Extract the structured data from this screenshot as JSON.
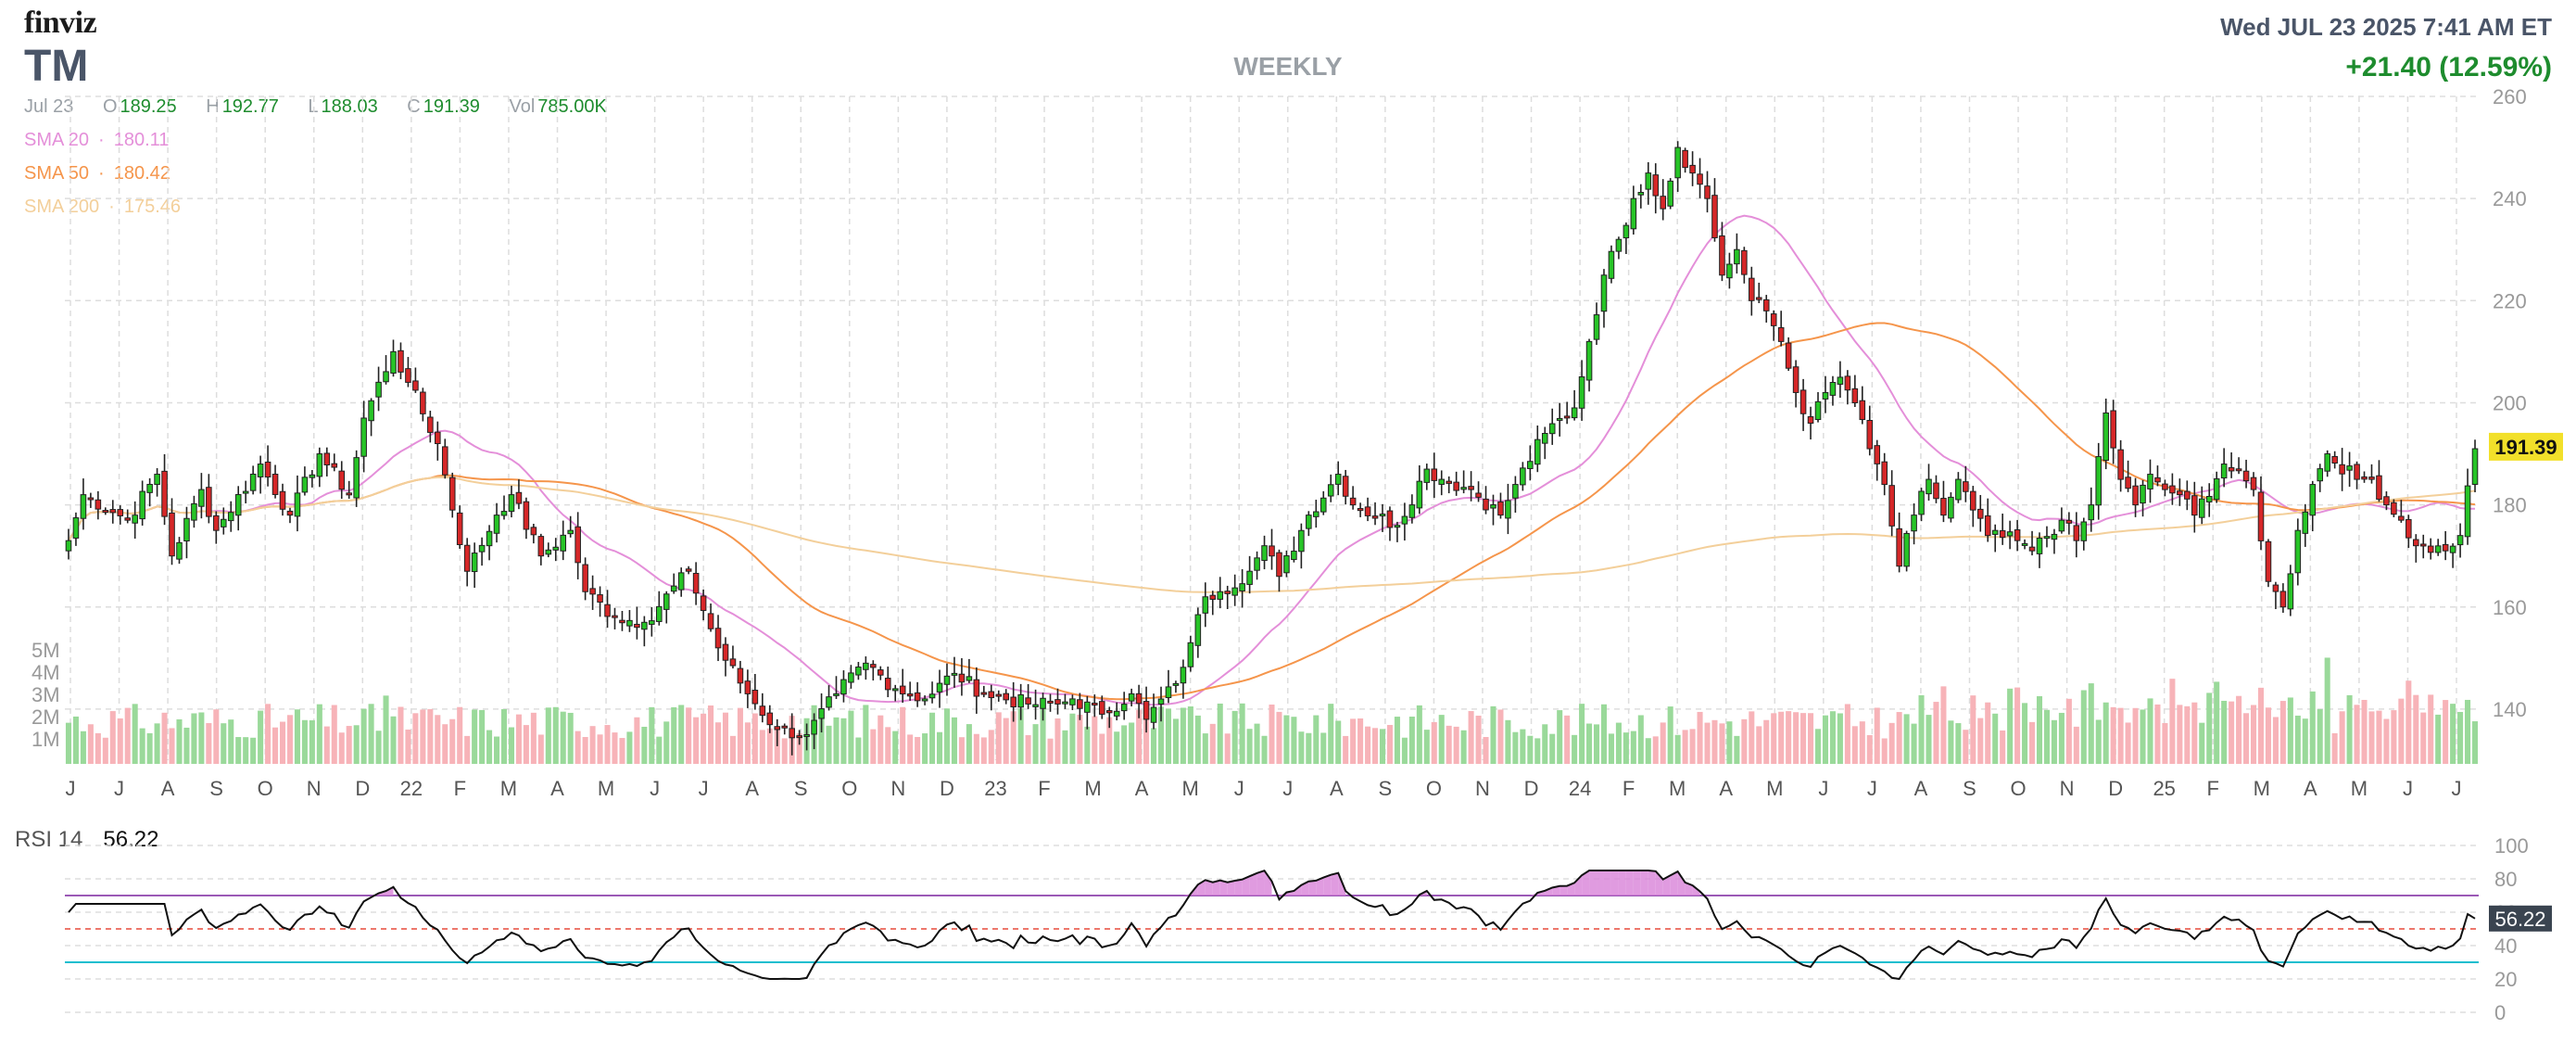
{
  "logo": "finviz",
  "ticker": "TM",
  "period": "WEEKLY",
  "datetime": "Wed JUL 23 2025 7:41 AM ET",
  "change": "+21.40 (12.59%)",
  "ohlc": {
    "date": "Jul 23",
    "open_label": "O",
    "open": "189.25",
    "high_label": "H",
    "high": "192.77",
    "low_label": "L",
    "low": "188.03",
    "close_label": "C",
    "close": "191.39",
    "vol_label": "Vol",
    "vol": "785.00K"
  },
  "indicators": [
    {
      "label": "SMA 20",
      "value": "180.11",
      "color": "#e48fd9"
    },
    {
      "label": "SMA 50",
      "value": "180.42",
      "color": "#f5954b"
    },
    {
      "label": "SMA 200",
      "value": "175.46",
      "color": "#f3cf9a"
    }
  ],
  "rsi": {
    "label": "RSI 14",
    "value": "56.22"
  },
  "colors": {
    "up": "#27c427",
    "down": "#d62728",
    "vol_up": "#9ad99a",
    "vol_down": "#f7b3b8",
    "grid": "#dddddd",
    "axis_text": "#999999",
    "current_price_bg": "#f2e02a",
    "rsi_fill": "#d882d8",
    "rsi_upper": "#9b59b6",
    "rsi_lower": "#17becf",
    "rsi_mid": "#e74c3c"
  },
  "chart_data": {
    "type": "candlestick",
    "price_axis": {
      "range": [
        130,
        260
      ],
      "ticks": [
        "140",
        "160",
        "180",
        "200",
        "220",
        "240",
        "260"
      ]
    },
    "current_price_label": "191.39",
    "volume_axis": {
      "ticks": [
        "1M",
        "2M",
        "3M",
        "4M",
        "5M"
      ]
    },
    "x_ticks": [
      "J",
      "J",
      "A",
      "S",
      "O",
      "N",
      "D",
      "22",
      "F",
      "M",
      "A",
      "M",
      "J",
      "J",
      "A",
      "S",
      "O",
      "N",
      "D",
      "23",
      "F",
      "M",
      "A",
      "M",
      "J",
      "J",
      "A",
      "S",
      "O",
      "N",
      "D",
      "24",
      "F",
      "M",
      "A",
      "M",
      "J",
      "J",
      "A",
      "S",
      "O",
      "N",
      "D",
      "25",
      "F",
      "M",
      "A",
      "M",
      "J",
      "J"
    ],
    "anchors": [
      [
        0,
        173
      ],
      [
        2,
        182
      ],
      [
        8,
        177
      ],
      [
        12,
        186
      ],
      [
        14,
        170
      ],
      [
        18,
        183
      ],
      [
        20,
        175
      ],
      [
        26,
        188
      ],
      [
        30,
        178
      ],
      [
        34,
        190
      ],
      [
        38,
        182
      ],
      [
        40,
        197
      ],
      [
        44,
        210
      ],
      [
        46,
        204
      ],
      [
        50,
        192
      ],
      [
        54,
        167
      ],
      [
        58,
        178
      ],
      [
        60,
        182
      ],
      [
        64,
        170
      ],
      [
        68,
        175
      ],
      [
        70,
        163
      ],
      [
        74,
        158
      ],
      [
        78,
        157
      ],
      [
        84,
        167
      ],
      [
        88,
        152
      ],
      [
        92,
        143
      ],
      [
        96,
        136
      ],
      [
        100,
        135
      ],
      [
        104,
        143
      ],
      [
        108,
        149
      ],
      [
        112,
        144
      ],
      [
        116,
        142
      ],
      [
        120,
        147
      ],
      [
        124,
        143
      ],
      [
        130,
        141
      ],
      [
        134,
        141
      ],
      [
        136,
        142
      ],
      [
        140,
        139
      ],
      [
        144,
        143
      ],
      [
        146,
        138
      ],
      [
        150,
        145
      ],
      [
        152,
        153
      ],
      [
        154,
        162
      ],
      [
        156,
        163
      ],
      [
        160,
        167
      ],
      [
        162,
        172
      ],
      [
        164,
        166
      ],
      [
        168,
        178
      ],
      [
        172,
        186
      ],
      [
        174,
        180
      ],
      [
        180,
        176
      ],
      [
        184,
        187
      ],
      [
        186,
        185
      ],
      [
        190,
        183
      ],
      [
        194,
        178
      ],
      [
        196,
        184
      ],
      [
        200,
        194
      ],
      [
        204,
        199
      ],
      [
        206,
        212
      ],
      [
        208,
        225
      ],
      [
        210,
        232
      ],
      [
        212,
        240
      ],
      [
        214,
        245
      ],
      [
        216,
        238
      ],
      [
        218,
        250
      ],
      [
        220,
        245
      ],
      [
        222,
        240
      ],
      [
        224,
        225
      ],
      [
        226,
        230
      ],
      [
        228,
        220
      ],
      [
        230,
        218
      ],
      [
        232,
        212
      ],
      [
        234,
        202
      ],
      [
        236,
        196
      ],
      [
        238,
        202
      ],
      [
        240,
        205
      ],
      [
        242,
        200
      ],
      [
        244,
        191
      ],
      [
        246,
        184
      ],
      [
        248,
        168
      ],
      [
        250,
        178
      ],
      [
        252,
        185
      ],
      [
        254,
        178
      ],
      [
        256,
        185
      ],
      [
        258,
        179
      ],
      [
        260,
        174
      ],
      [
        264,
        173
      ],
      [
        266,
        171
      ],
      [
        270,
        177
      ],
      [
        272,
        173
      ],
      [
        274,
        180
      ],
      [
        276,
        198
      ],
      [
        278,
        185
      ],
      [
        280,
        180
      ],
      [
        282,
        186
      ],
      [
        284,
        183
      ],
      [
        286,
        182
      ],
      [
        288,
        178
      ],
      [
        292,
        188
      ],
      [
        296,
        183
      ],
      [
        298,
        165
      ],
      [
        300,
        160
      ],
      [
        302,
        175
      ],
      [
        304,
        184
      ],
      [
        306,
        190
      ],
      [
        310,
        185
      ],
      [
        312,
        185
      ],
      [
        314,
        180
      ],
      [
        316,
        177
      ],
      [
        318,
        172
      ],
      [
        322,
        171
      ],
      [
        324,
        174
      ],
      [
        326,
        191
      ]
    ],
    "sma_levels": [
      {
        "name": "SMA 20",
        "value": 180.11
      },
      {
        "name": "SMA 50",
        "value": 180.42
      },
      {
        "name": "SMA 200",
        "value": 175.46
      }
    ],
    "rsi_axis": {
      "range": [
        0,
        100
      ],
      "ticks": [
        "0",
        "20",
        "40",
        "60",
        "80",
        "100"
      ],
      "upper": 70,
      "lower": 30,
      "mid": 50
    },
    "rsi_current": 56.22
  }
}
